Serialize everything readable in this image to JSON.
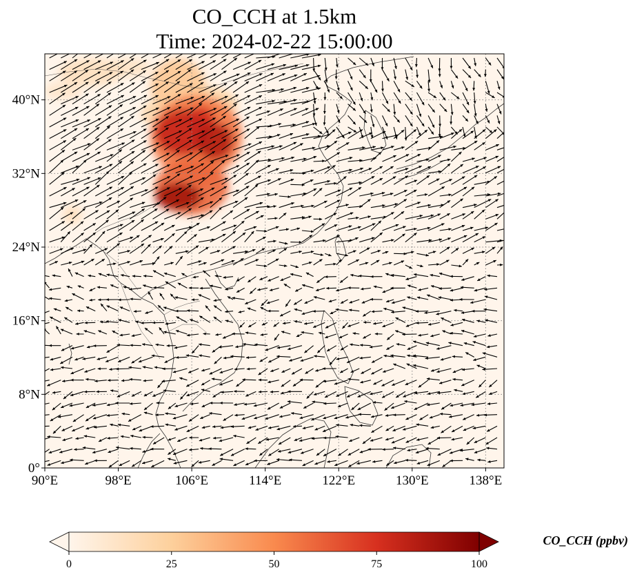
{
  "figure": {
    "title_line1": "CO_CCH at 1.5km",
    "title_line2": "Time: 2024-02-22 15:00:00"
  },
  "map": {
    "projection": "PlateCarree",
    "lon_range": [
      90,
      140
    ],
    "lat_range": [
      0,
      45
    ],
    "gridlines": "dotted",
    "background_color": "#fff5eb",
    "x_ticks": [
      {
        "value": 90,
        "label": "90°E"
      },
      {
        "value": 98,
        "label": "98°E"
      },
      {
        "value": 106,
        "label": "106°E"
      },
      {
        "value": 114,
        "label": "114°E"
      },
      {
        "value": 122,
        "label": "122°E"
      },
      {
        "value": 130,
        "label": "130°E"
      },
      {
        "value": 138,
        "label": "138°E"
      }
    ],
    "y_ticks": [
      {
        "value": 0,
        "label": "0°"
      },
      {
        "value": 8,
        "label": "8°N"
      },
      {
        "value": 16,
        "label": "16°N"
      },
      {
        "value": 24,
        "label": "24°N"
      },
      {
        "value": 32,
        "label": "32°N"
      },
      {
        "value": 40,
        "label": "40°N"
      }
    ],
    "concentration_regions": [
      {
        "lon": 106.5,
        "lat": 36,
        "rlon": 5,
        "rlat": 4.5,
        "value": 55
      },
      {
        "lon": 105,
        "lat": 36.5,
        "rlon": 3,
        "rlat": 2.5,
        "value": 80
      },
      {
        "lon": 108.5,
        "lat": 35.5,
        "rlon": 2,
        "rlat": 2,
        "value": 85
      },
      {
        "lon": 107,
        "lat": 37.8,
        "rlon": 1.5,
        "rlat": 1.5,
        "value": 75
      },
      {
        "lon": 106,
        "lat": 30.5,
        "rlon": 4,
        "rlat": 3,
        "value": 60
      },
      {
        "lon": 104.5,
        "lat": 29.5,
        "rlon": 2.5,
        "rlat": 1.5,
        "value": 90
      },
      {
        "lon": 107,
        "lat": 32.5,
        "rlon": 2,
        "rlat": 2,
        "value": 50
      },
      {
        "lon": 104.5,
        "lat": 41.5,
        "rlon": 3,
        "rlat": 3,
        "value": 28
      },
      {
        "lon": 107,
        "lat": 39.5,
        "rlon": 4,
        "rlat": 2,
        "value": 22
      },
      {
        "lon": 95,
        "lat": 43,
        "rlon": 3.5,
        "rlat": 1.5,
        "value": 14
      },
      {
        "lon": 99,
        "lat": 43.5,
        "rlon": 2.5,
        "rlat": 1,
        "value": 12
      },
      {
        "lon": 102.5,
        "lat": 38.5,
        "rlon": 2,
        "rlat": 1.5,
        "value": 20
      },
      {
        "lon": 92,
        "lat": 41,
        "rlon": 2,
        "rlat": 1,
        "value": 10
      },
      {
        "lon": 93,
        "lat": 27.5,
        "rlon": 1,
        "rlat": 1,
        "value": 15
      }
    ],
    "wind_vectors": "quiver"
  },
  "colorbar": {
    "label": "CO_CCH (ppbv)",
    "cmap": "OrRd",
    "range": [
      0,
      100
    ],
    "extend": "both",
    "ticks": [
      {
        "value": 0,
        "label": "0"
      },
      {
        "value": 25,
        "label": "25"
      },
      {
        "value": 50,
        "label": "50"
      },
      {
        "value": 75,
        "label": "75"
      },
      {
        "value": 100,
        "label": "100"
      }
    ],
    "colors": {
      "c0": "#fff5eb",
      "c25": "#fdd09c",
      "c50": "#f98a4e",
      "c75": "#d7301f",
      "c100": "#7f0000"
    }
  }
}
